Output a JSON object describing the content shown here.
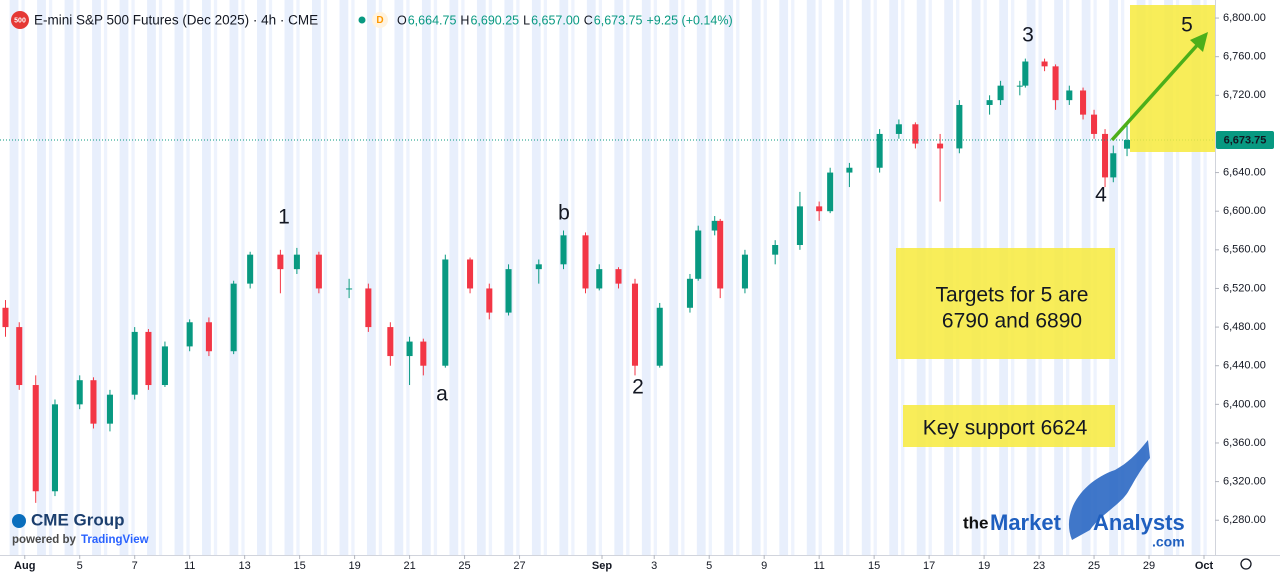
{
  "chart_data": {
    "type": "candlestick",
    "header": {
      "badge": "500",
      "title": "E-mini S&P 500 Futures (Dec 2025) · 4h · CME",
      "interval_badge": "D",
      "ohlc": [
        {
          "key": "O",
          "value": "6,664.75"
        },
        {
          "key": "H",
          "value": "6,690.25"
        },
        {
          "key": "L",
          "value": "6,657.00"
        },
        {
          "key": "C",
          "value": "6,673.75"
        }
      ],
      "change": "+9.25 (+0.14%)"
    },
    "x": [
      -0.7,
      -0.2,
      0.4,
      1.1,
      2.0,
      2.5,
      3.1,
      4.0,
      4.5,
      5.1,
      6.0,
      6.7,
      7.6,
      8.2,
      9.3,
      9.9,
      10.7,
      11.8,
      12.5,
      13.3,
      14.0,
      14.5,
      15.3,
      16.2,
      16.9,
      17.6,
      18.7,
      19.6,
      20.4,
      20.9,
      21.6,
      22.2,
      23.1,
      24.2,
      24.5,
      25.1,
      25.3,
      26.2,
      27.3,
      28.2,
      28.9,
      29.3,
      30.0,
      31.1,
      31.8,
      32.4,
      33.3,
      34.0,
      35.1,
      35.5,
      36.2,
      36.4,
      37.1,
      37.5,
      38.0,
      38.5,
      38.9,
      39.3,
      39.6,
      40.1
    ],
    "open": [
      6500,
      6480,
      6420,
      6310,
      6400,
      6425,
      6380,
      6410,
      6475,
      6420,
      6460,
      6485,
      6455,
      6525,
      6555,
      6540,
      6555,
      6520,
      6520,
      6480,
      6450,
      6465,
      6440,
      6550,
      6520,
      6495,
      6540,
      6545,
      6575,
      6520,
      6540,
      6525,
      6440,
      6500,
      6530,
      6580,
      6590,
      6520,
      6555,
      6565,
      6605,
      6600,
      6640,
      6645,
      6680,
      6690,
      6670,
      6665,
      6710,
      6715,
      6730,
      6730,
      6755,
      6750,
      6715,
      6725,
      6700,
      6680,
      6635,
      6664.75
    ],
    "high": [
      6508,
      6485,
      6430,
      6405,
      6430,
      6428,
      6415,
      6480,
      6478,
      6465,
      6488,
      6490,
      6528,
      6558,
      6560,
      6562,
      6558,
      6530,
      6525,
      6485,
      6470,
      6468,
      6555,
      6552,
      6525,
      6545,
      6550,
      6580,
      6578,
      6545,
      6542,
      6530,
      6505,
      6535,
      6585,
      6595,
      6592,
      6560,
      6570,
      6620,
      6610,
      6645,
      6650,
      6685,
      6695,
      6692,
      6680,
      6715,
      6720,
      6735,
      6735,
      6758,
      6758,
      6752,
      6730,
      6728,
      6705,
      6685,
      6668,
      6690.25
    ],
    "low": [
      6470,
      6415,
      6298,
      6305,
      6395,
      6375,
      6372,
      6405,
      6415,
      6418,
      6455,
      6450,
      6452,
      6520,
      6515,
      6535,
      6515,
      6510,
      6475,
      6440,
      6420,
      6430,
      6438,
      6515,
      6488,
      6492,
      6525,
      6540,
      6515,
      6518,
      6520,
      6430,
      6438,
      6495,
      6528,
      6575,
      6510,
      6515,
      6545,
      6560,
      6590,
      6598,
      6625,
      6640,
      6675,
      6665,
      6610,
      6660,
      6700,
      6710,
      6720,
      6728,
      6745,
      6705,
      6710,
      6695,
      6675,
      6625,
      6630,
      6657
    ],
    "close": [
      6480,
      6420,
      6310,
      6400,
      6425,
      6380,
      6410,
      6475,
      6420,
      6460,
      6485,
      6455,
      6525,
      6555,
      6540,
      6555,
      6520,
      6520,
      6480,
      6450,
      6465,
      6440,
      6550,
      6520,
      6495,
      6540,
      6545,
      6575,
      6520,
      6540,
      6525,
      6440,
      6500,
      6530,
      6580,
      6590,
      6520,
      6555,
      6565,
      6605,
      6600,
      6640,
      6645,
      6680,
      6690,
      6670,
      6665,
      6710,
      6715,
      6730,
      6730,
      6755,
      6750,
      6715,
      6725,
      6700,
      6680,
      6635,
      6660,
      6673.75
    ],
    "up_color": "#089981",
    "down_color": "#f23645",
    "xlim": [
      -0.9,
      43.3
    ],
    "xticks": [
      {
        "value": 0,
        "label": "Aug"
      },
      {
        "value": 2,
        "label": "5"
      },
      {
        "value": 4,
        "label": "7"
      },
      {
        "value": 6,
        "label": "11"
      },
      {
        "value": 8,
        "label": "13"
      },
      {
        "value": 10,
        "label": "15"
      },
      {
        "value": 12,
        "label": "19"
      },
      {
        "value": 14,
        "label": "21"
      },
      {
        "value": 16,
        "label": "25"
      },
      {
        "value": 18,
        "label": "27"
      },
      {
        "value": 21,
        "label": "Sep"
      },
      {
        "value": 22.9,
        "label": "3"
      },
      {
        "value": 24.9,
        "label": "5"
      },
      {
        "value": 26.9,
        "label": "9"
      },
      {
        "value": 28.9,
        "label": "11"
      },
      {
        "value": 30.9,
        "label": "15"
      },
      {
        "value": 32.9,
        "label": "17"
      },
      {
        "value": 34.9,
        "label": "19"
      },
      {
        "value": 36.9,
        "label": "23"
      },
      {
        "value": 38.9,
        "label": "25"
      },
      {
        "value": 40.9,
        "label": "29"
      },
      {
        "value": 42.9,
        "label": "Oct"
      }
    ],
    "ylim": [
      6244,
      6813
    ],
    "yticks": [
      {
        "value": 6280,
        "label": "6,280.00"
      },
      {
        "value": 6320,
        "label": "6,320.00"
      },
      {
        "value": 6360,
        "label": "6,360.00"
      },
      {
        "value": 6400,
        "label": "6,400.00"
      },
      {
        "value": 6440,
        "label": "6,440.00"
      },
      {
        "value": 6480,
        "label": "6,480.00"
      },
      {
        "value": 6520,
        "label": "6,520.00"
      },
      {
        "value": 6560,
        "label": "6,560.00"
      },
      {
        "value": 6600,
        "label": "6,600.00"
      },
      {
        "value": 6640,
        "label": "6,640.00"
      },
      {
        "value": 6720,
        "label": "6,720.00"
      },
      {
        "value": 6760,
        "label": "6,760.00"
      },
      {
        "value": 6800,
        "label": "6,800.00"
      }
    ],
    "last_price": {
      "value": 6673.75,
      "label": "6,673.75"
    },
    "grid": false,
    "wave_labels": [
      "1",
      "a",
      "b",
      "2",
      "3",
      "4",
      "5"
    ],
    "target_text": [
      "Targets for 5 are",
      "6790 and 6890"
    ],
    "support_text": "Key support 6624",
    "logos": {
      "cme": "CME Group",
      "powered": "powered by",
      "tv": "TradingView",
      "ma_the": "the",
      "ma_market": "Market",
      "ma_analysts": "Analysts",
      "ma_com": ".com"
    }
  }
}
